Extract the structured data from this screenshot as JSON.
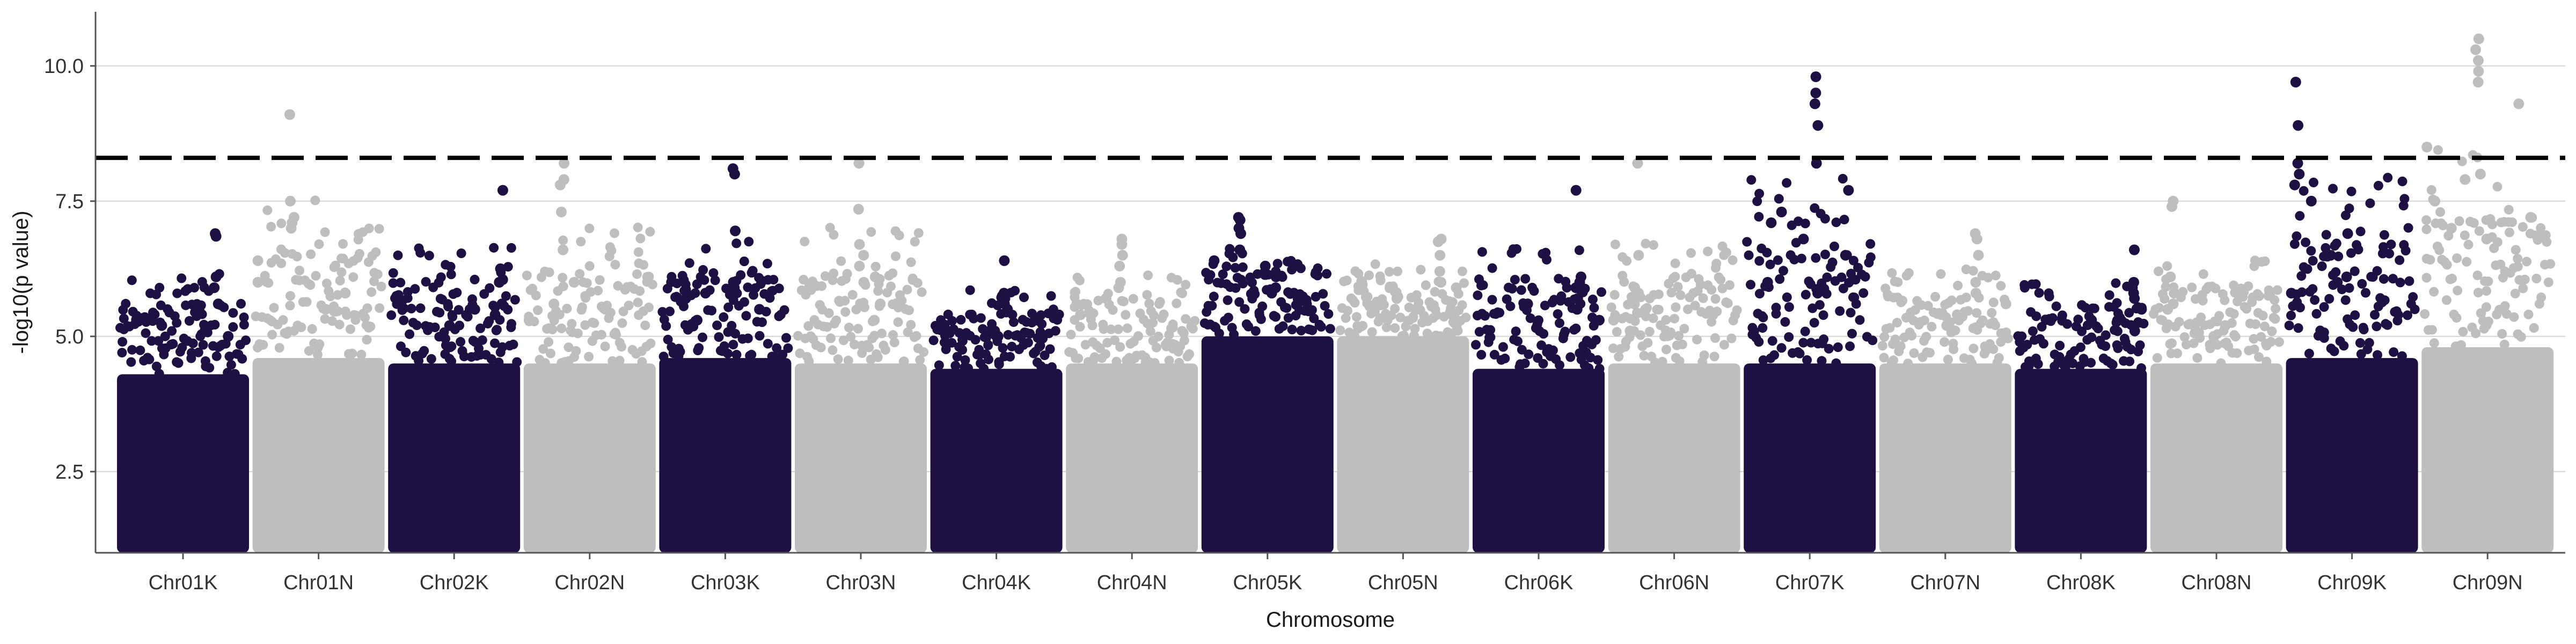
{
  "chart_data": {
    "type": "scatter",
    "subtype": "manhattan",
    "title": "",
    "xlabel": "Chromosome",
    "ylabel": "-log10(p value)",
    "ylim": [
      1.0,
      11.0
    ],
    "y_ticks": [
      2.5,
      5.0,
      7.5,
      10.0
    ],
    "y_tick_labels": [
      "2.5",
      "5.0",
      "7.5",
      "10.0"
    ],
    "threshold": 8.3,
    "grid": "horizontal major only",
    "legend": "none",
    "colors": {
      "dark": "#1e1043",
      "light": "#bebebe",
      "grid": "#d3d3d3",
      "axis": "#555555",
      "threshold": "#000000"
    },
    "categories": [
      "Chr01K",
      "Chr01N",
      "Chr02K",
      "Chr02N",
      "Chr03K",
      "Chr03N",
      "Chr04K",
      "Chr04N",
      "Chr05K",
      "Chr05N",
      "Chr06K",
      "Chr06N",
      "Chr07K",
      "Chr07N",
      "Chr08K",
      "Chr08N",
      "Chr09K",
      "Chr09N"
    ],
    "series": [
      {
        "name": "Chr01K",
        "color": "dark",
        "base_max": 4.3,
        "peak_max": 6.9,
        "top_points": [
          6.9,
          6.85,
          6.1,
          5.9,
          5.6,
          5.5,
          5.2,
          5.0
        ]
      },
      {
        "name": "Chr01N",
        "color": "light",
        "base_max": 4.6,
        "peak_max": 9.1,
        "top_points": [
          9.1,
          7.5,
          7.2,
          7.1,
          7.0,
          6.4,
          6.0,
          5.8,
          5.5
        ]
      },
      {
        "name": "Chr02K",
        "color": "dark",
        "base_max": 4.5,
        "peak_max": 7.7,
        "top_points": [
          7.7,
          6.25,
          6.05,
          6.0,
          5.6,
          5.5,
          5.4,
          5.2
        ]
      },
      {
        "name": "Chr02N",
        "color": "light",
        "base_max": 4.5,
        "peak_max": 8.2,
        "top_points": [
          8.2,
          7.9,
          7.8,
          7.3,
          6.6,
          6.0,
          5.6,
          5.3
        ]
      },
      {
        "name": "Chr03K",
        "color": "dark",
        "base_max": 4.6,
        "peak_max": 8.1,
        "top_points": [
          8.1,
          8.0,
          6.95,
          6.0,
          5.9,
          5.8,
          5.7,
          5.5,
          5.3
        ]
      },
      {
        "name": "Chr03N",
        "color": "light",
        "base_max": 4.5,
        "peak_max": 8.2,
        "top_points": [
          8.2,
          7.35,
          6.7,
          6.5,
          6.3,
          6.1,
          6.0,
          5.6,
          5.3
        ]
      },
      {
        "name": "Chr04K",
        "color": "dark",
        "base_max": 4.4,
        "peak_max": 6.4,
        "top_points": [
          6.4,
          5.8,
          5.7,
          5.6,
          5.5,
          5.3,
          5.1,
          5.0
        ]
      },
      {
        "name": "Chr04N",
        "color": "light",
        "base_max": 4.5,
        "peak_max": 6.8,
        "top_points": [
          6.8,
          6.7,
          6.5,
          6.3,
          6.0,
          5.9,
          5.7,
          5.4
        ]
      },
      {
        "name": "Chr05K",
        "color": "dark",
        "base_max": 5.0,
        "peak_max": 7.2,
        "top_points": [
          7.2,
          7.15,
          7.0,
          6.9,
          6.6,
          6.4,
          6.3,
          6.1,
          5.9,
          5.8
        ]
      },
      {
        "name": "Chr05N",
        "color": "light",
        "base_max": 5.0,
        "peak_max": 6.8,
        "top_points": [
          6.8,
          6.75,
          6.5,
          6.2,
          6.0,
          5.9,
          5.7,
          5.5
        ]
      },
      {
        "name": "Chr06K",
        "color": "dark",
        "base_max": 4.4,
        "peak_max": 7.7,
        "top_points": [
          7.7,
          6.1,
          6.0,
          5.9,
          5.7,
          5.6,
          5.5,
          5.3
        ]
      },
      {
        "name": "Chr06N",
        "color": "light",
        "base_max": 4.5,
        "peak_max": 8.2,
        "top_points": [
          8.2,
          6.5,
          5.9,
          5.8,
          5.6,
          5.5,
          5.3,
          5.1
        ]
      },
      {
        "name": "Chr07K",
        "color": "dark",
        "base_max": 4.5,
        "peak_max": 9.8,
        "top_points": [
          9.8,
          9.5,
          9.3,
          8.9,
          8.2,
          7.7,
          7.3,
          7.1,
          6.8,
          6.5,
          6.0,
          5.8
        ]
      },
      {
        "name": "Chr07N",
        "color": "light",
        "base_max": 4.5,
        "peak_max": 6.9,
        "top_points": [
          6.9,
          6.8,
          6.5,
          6.0,
          5.8,
          5.6,
          5.4,
          5.2
        ]
      },
      {
        "name": "Chr08K",
        "color": "dark",
        "base_max": 4.4,
        "peak_max": 6.6,
        "top_points": [
          6.6,
          6.0,
          5.9,
          5.8,
          5.7,
          5.5,
          5.3,
          5.1
        ]
      },
      {
        "name": "Chr08N",
        "color": "light",
        "base_max": 4.5,
        "peak_max": 7.5,
        "top_points": [
          7.5,
          7.4,
          6.1,
          5.8,
          5.6,
          5.5,
          5.2,
          5.0
        ]
      },
      {
        "name": "Chr09K",
        "color": "dark",
        "base_max": 4.6,
        "peak_max": 9.7,
        "top_points": [
          9.7,
          8.9,
          8.2,
          8.0,
          7.8,
          7.5,
          6.9,
          6.5,
          6.1,
          6.0,
          5.8
        ]
      },
      {
        "name": "Chr09N",
        "color": "light",
        "base_max": 4.8,
        "peak_max": 10.5,
        "top_points": [
          10.5,
          10.3,
          10.1,
          9.9,
          9.7,
          9.3,
          8.5,
          8.0,
          7.9,
          7.5,
          7.2,
          7.0,
          6.8
        ]
      }
    ]
  }
}
